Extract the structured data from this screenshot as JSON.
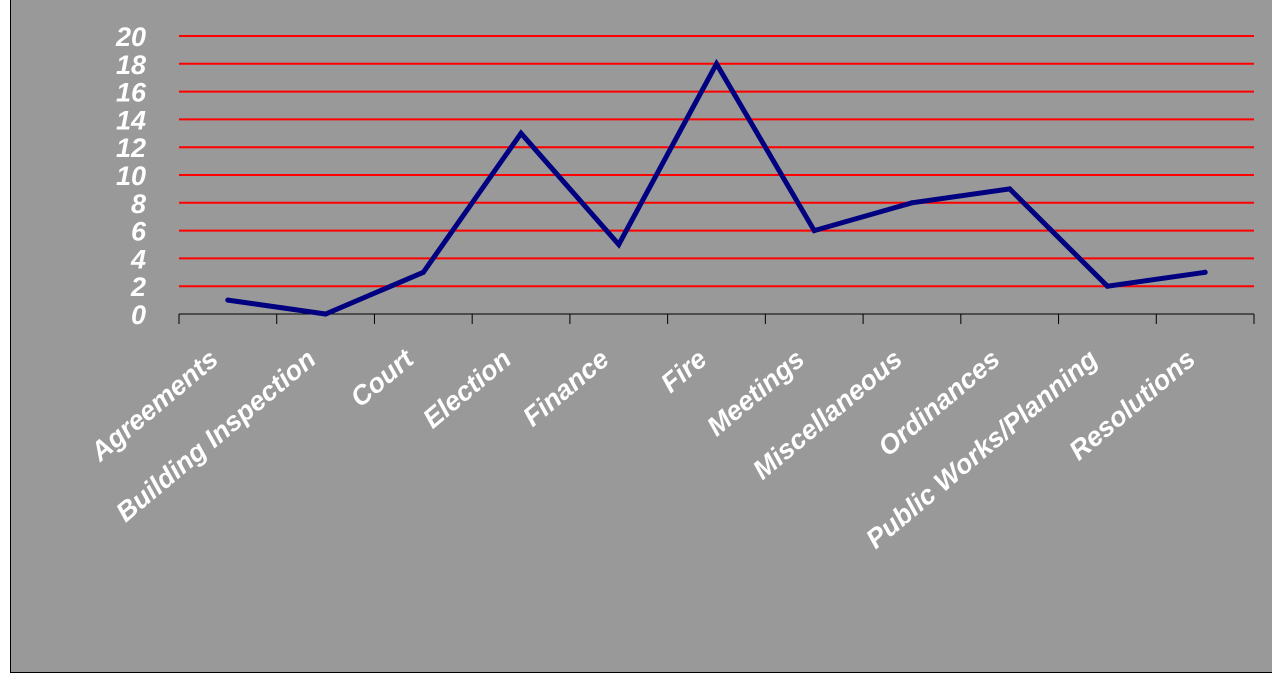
{
  "chart_data": {
    "type": "line",
    "title": "",
    "xlabel": "",
    "ylabel": "",
    "categories": [
      "Agreements",
      "Building Inspection",
      "Court",
      "Election",
      "Finance",
      "Fire",
      "Meetings",
      "Miscellaneous",
      "Ordinances",
      "Public Works/Planning",
      "Resolutions"
    ],
    "series": [
      {
        "values": [
          1,
          0,
          3,
          13,
          5,
          18,
          6,
          8,
          9,
          2,
          3
        ]
      }
    ],
    "ylim": [
      0,
      20
    ],
    "y_ticks": [
      "0",
      "2",
      "4",
      "6",
      "8",
      "10",
      "12",
      "14",
      "16",
      "18",
      "20"
    ],
    "grid": true,
    "legend": "none",
    "colors": {
      "background": "#999999",
      "grid": "#ff0000",
      "line": "#000080",
      "text": "#ffffff",
      "axis": "#000000"
    }
  }
}
